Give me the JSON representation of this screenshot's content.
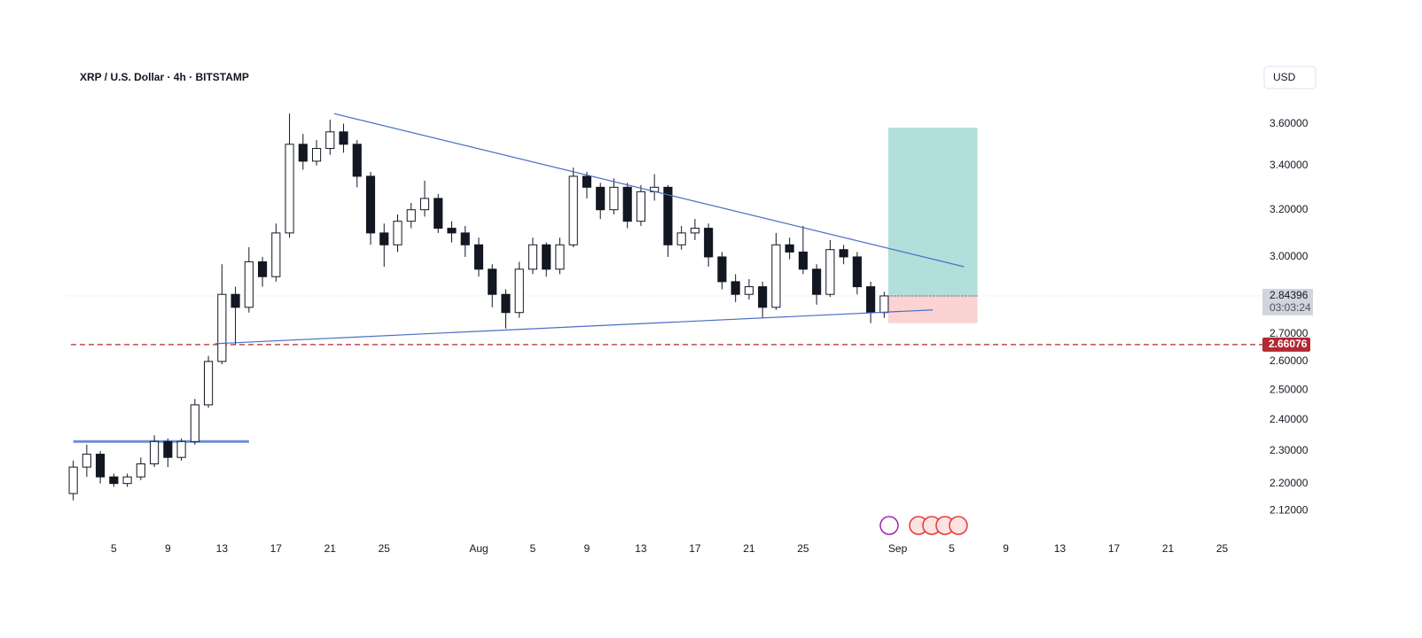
{
  "chart_data": {
    "type": "candlestick",
    "title": "XRP / U.S. Dollar · 4h · BITSTAMP",
    "currency": "USD",
    "log_scale": true,
    "grid": false,
    "up_color": "#ffffff",
    "down_color": "#131722",
    "x": [
      1,
      2,
      3,
      4,
      5,
      6,
      7,
      8,
      9,
      10,
      11,
      12,
      13,
      14,
      15,
      16,
      17,
      18,
      19,
      20,
      21,
      22,
      23,
      24,
      25,
      26,
      27,
      28,
      29,
      30,
      31,
      32,
      33,
      34,
      35,
      36,
      37,
      38,
      39,
      40,
      41,
      42,
      43,
      44,
      45,
      46,
      47,
      48,
      49,
      50,
      51,
      52,
      53,
      54,
      55,
      56,
      57,
      58,
      59,
      60,
      61
    ],
    "open": [
      2.17,
      2.25,
      2.29,
      2.22,
      2.2,
      2.22,
      2.26,
      2.33,
      2.28,
      2.33,
      2.45,
      2.6,
      2.85,
      2.8,
      2.98,
      2.92,
      3.1,
      3.5,
      3.42,
      3.48,
      3.56,
      3.5,
      3.35,
      3.1,
      3.05,
      3.15,
      3.2,
      3.25,
      3.12,
      3.1,
      3.05,
      2.95,
      2.85,
      2.78,
      2.95,
      3.05,
      2.95,
      3.05,
      3.35,
      3.3,
      3.2,
      3.3,
      3.15,
      3.28,
      3.3,
      3.05,
      3.1,
      3.12,
      3.0,
      2.9,
      2.85,
      2.88,
      2.8,
      3.05,
      3.02,
      2.95,
      2.85,
      3.03,
      3.0,
      2.88,
      2.78
    ],
    "high": [
      2.27,
      2.32,
      2.3,
      2.23,
      2.23,
      2.28,
      2.35,
      2.34,
      2.34,
      2.47,
      2.62,
      2.97,
      2.88,
      3.04,
      3.0,
      3.14,
      3.65,
      3.55,
      3.52,
      3.62,
      3.6,
      3.52,
      3.37,
      3.14,
      3.18,
      3.23,
      3.33,
      3.27,
      3.15,
      3.13,
      3.08,
      2.97,
      2.87,
      2.98,
      3.08,
      3.06,
      3.08,
      3.39,
      3.37,
      3.32,
      3.34,
      3.32,
      3.31,
      3.36,
      3.31,
      3.13,
      3.16,
      3.14,
      3.02,
      2.93,
      2.91,
      2.9,
      3.1,
      3.08,
      3.13,
      2.97,
      3.07,
      3.05,
      3.02,
      2.9,
      2.86
    ],
    "low": [
      2.15,
      2.22,
      2.2,
      2.19,
      2.19,
      2.21,
      2.25,
      2.25,
      2.27,
      2.32,
      2.44,
      2.59,
      2.66,
      2.78,
      2.88,
      2.9,
      3.08,
      3.38,
      3.4,
      3.45,
      3.46,
      3.3,
      3.05,
      2.96,
      3.02,
      3.12,
      3.17,
      3.1,
      3.06,
      3.0,
      2.92,
      2.8,
      2.72,
      2.76,
      2.93,
      2.92,
      2.93,
      3.04,
      3.25,
      3.16,
      3.18,
      3.12,
      3.13,
      3.24,
      3.0,
      3.03,
      3.07,
      2.96,
      2.87,
      2.82,
      2.83,
      2.76,
      2.79,
      2.99,
      2.93,
      2.81,
      2.84,
      2.97,
      2.85,
      2.74,
      2.76
    ],
    "close": [
      2.25,
      2.29,
      2.22,
      2.2,
      2.22,
      2.26,
      2.33,
      2.28,
      2.33,
      2.45,
      2.6,
      2.85,
      2.8,
      2.98,
      2.92,
      3.1,
      3.5,
      3.42,
      3.48,
      3.56,
      3.5,
      3.35,
      3.1,
      3.05,
      3.15,
      3.2,
      3.25,
      3.12,
      3.1,
      3.05,
      2.95,
      2.85,
      2.78,
      2.95,
      3.05,
      2.95,
      3.05,
      3.35,
      3.3,
      3.2,
      3.3,
      3.15,
      3.28,
      3.3,
      3.05,
      3.1,
      3.12,
      3.0,
      2.9,
      2.85,
      2.88,
      2.8,
      3.05,
      3.02,
      2.95,
      2.85,
      3.03,
      3.0,
      2.88,
      2.78,
      2.84396
    ],
    "xlim": [
      0.5,
      88
    ],
    "xticks": [
      {
        "value": 4,
        "label": "5"
      },
      {
        "value": 8,
        "label": "9"
      },
      {
        "value": 12,
        "label": "13"
      },
      {
        "value": 16,
        "label": "17"
      },
      {
        "value": 20,
        "label": "21"
      },
      {
        "value": 24,
        "label": "25"
      },
      {
        "value": 31,
        "label": "Aug"
      },
      {
        "value": 35,
        "label": "5"
      },
      {
        "value": 39,
        "label": "9"
      },
      {
        "value": 43,
        "label": "13"
      },
      {
        "value": 47,
        "label": "17"
      },
      {
        "value": 51,
        "label": "21"
      },
      {
        "value": 55,
        "label": "25"
      },
      {
        "value": 62,
        "label": "Sep"
      },
      {
        "value": 66,
        "label": "5"
      },
      {
        "value": 70,
        "label": "9"
      },
      {
        "value": 74,
        "label": "13"
      },
      {
        "value": 78,
        "label": "17"
      },
      {
        "value": 82,
        "label": "21"
      },
      {
        "value": 86,
        "label": "25"
      }
    ],
    "ylim": [
      2.1,
      3.7
    ],
    "yticks": [
      {
        "value": 3.6,
        "label": "3.60000"
      },
      {
        "value": 3.4,
        "label": "3.40000"
      },
      {
        "value": 3.2,
        "label": "3.20000"
      },
      {
        "value": 3.0,
        "label": "3.00000"
      },
      {
        "value": 2.7,
        "label": "2.70000"
      },
      {
        "value": 2.6,
        "label": "2.60000"
      },
      {
        "value": 2.5,
        "label": "2.50000"
      },
      {
        "value": 2.4,
        "label": "2.40000"
      },
      {
        "value": 2.3,
        "label": "2.30000"
      },
      {
        "value": 2.2,
        "label": "2.20000"
      },
      {
        "value": 2.12,
        "label": "2.12000"
      }
    ],
    "last_price": 2.84396,
    "countdown": "03:03:24",
    "alert_level": 2.66076,
    "alert_color": "#b22833",
    "trendline_color": "#4a6fc4",
    "trendlines": [
      {
        "x": [
          20.3,
          66.9
        ],
        "y": [
          3.65,
          2.96
        ]
      },
      {
        "x": [
          11.5,
          64.6
        ],
        "y": [
          2.664,
          2.79
        ]
      }
    ],
    "support": {
      "x": [
        1,
        14
      ],
      "y": 2.33
    },
    "position": {
      "x": [
        61.3,
        67.9
      ],
      "entry": 2.84396,
      "target": 3.58,
      "stop": 2.74,
      "profit_color": "#b2dfdb",
      "loss_color": "#fbd3d3"
    }
  }
}
